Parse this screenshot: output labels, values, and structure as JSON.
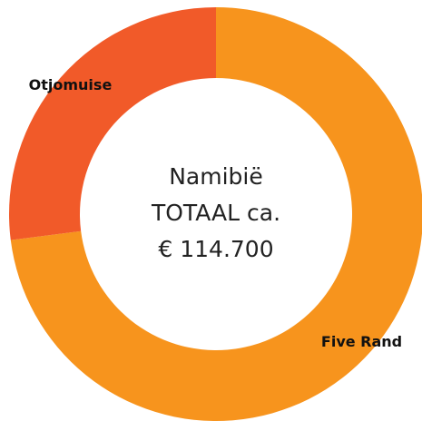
{
  "chart_data": {
    "type": "donut",
    "categories": [
      "Five Rand",
      "Otjomuise"
    ],
    "values": [
      73,
      27
    ],
    "colors": [
      "#f7941d",
      "#f15a29"
    ],
    "center_text": [
      "Namibië",
      "TOTAAL ca.",
      "€ 114.700"
    ]
  }
}
